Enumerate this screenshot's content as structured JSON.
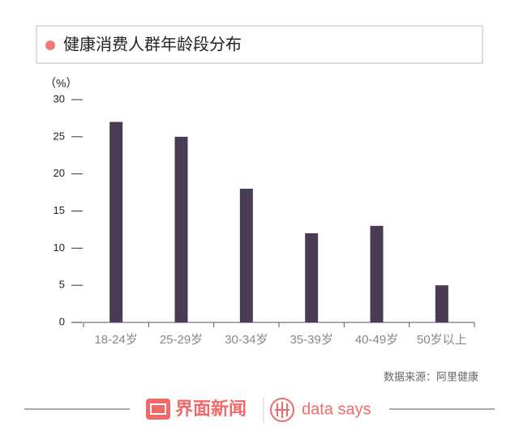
{
  "chart_data": {
    "type": "bar",
    "title": "健康消费人群年龄段分布",
    "y_label": "（%）",
    "categories": [
      "18-24岁",
      "25-29岁",
      "30-34岁",
      "35-39岁",
      "40-49岁",
      "50岁以上"
    ],
    "values": [
      27,
      25,
      18,
      12,
      13,
      5
    ],
    "color": "#4a3c54",
    "ylim": [
      0,
      30
    ],
    "yticks": [
      0,
      5,
      10,
      15,
      20,
      25,
      30
    ],
    "source": "数据来源：阿里健康"
  },
  "footer": {
    "brand": "界面新闻",
    "sub_brand": "data says"
  }
}
